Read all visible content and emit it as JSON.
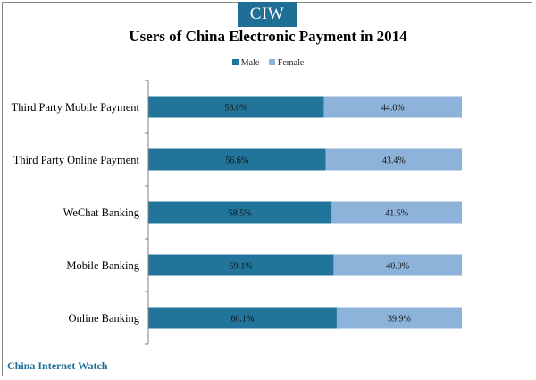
{
  "brand": {
    "logo_text": "CIW",
    "footer_text": "China Internet Watch",
    "accent": "#1f6e96"
  },
  "chart_data": {
    "type": "bar",
    "orientation": "horizontal",
    "stacked": true,
    "percent_stacked": true,
    "title": "Users of China Electronic Payment in 2014",
    "xlabel": "",
    "ylabel": "",
    "legend_position": "top",
    "grid": false,
    "xlim": [
      0,
      100
    ],
    "categories": [
      "Third Party Mobile Payment",
      "Third Party Online Payment",
      "WeChat Banking",
      "Mobile Banking",
      "Online Banking"
    ],
    "series": [
      {
        "name": "Male",
        "color": "#21759b",
        "values": [
          56.0,
          56.6,
          58.5,
          59.1,
          60.1
        ],
        "labels": [
          "56.0%",
          "56.6%",
          "58.5%",
          "59.1%",
          "60.1%"
        ]
      },
      {
        "name": "Female",
        "color": "#8db3da",
        "values": [
          44.0,
          43.4,
          41.5,
          40.9,
          39.9
        ],
        "labels": [
          "44.0%",
          "43.4%",
          "41.5%",
          "40.9%",
          "39.9%"
        ]
      }
    ]
  }
}
